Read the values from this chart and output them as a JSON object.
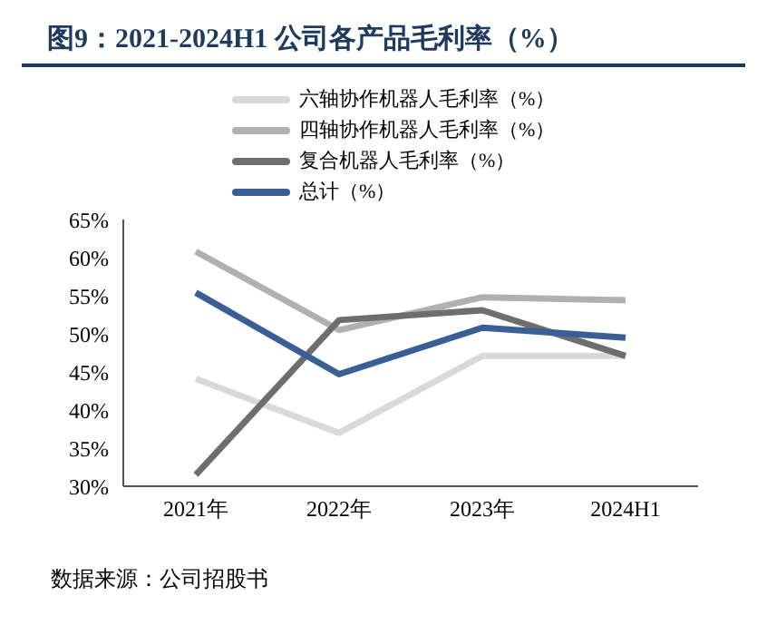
{
  "chart_data": {
    "type": "line",
    "title": "图9：2021-2024H1 公司各产品毛利率（%）",
    "categories": [
      "2021年",
      "2022年",
      "2023年",
      "2024H1"
    ],
    "series": [
      {
        "name": "六轴协作机器人毛利率（%）",
        "color": "#d9d9d9",
        "values": [
          44.1,
          37.0,
          47.1,
          47.1
        ]
      },
      {
        "name": "四轴协作机器人毛利率（%）",
        "color": "#b0b0b0",
        "values": [
          60.8,
          50.5,
          54.8,
          54.4
        ]
      },
      {
        "name": "复合机器人毛利率（%）",
        "color": "#6e6e6e",
        "values": [
          31.5,
          51.8,
          53.1,
          47.1
        ]
      },
      {
        "name": "总计（%）",
        "color": "#3a5f95",
        "values": [
          55.4,
          44.7,
          50.8,
          49.5
        ]
      }
    ],
    "ylim": [
      30,
      65
    ],
    "yticks": [
      {
        "value": 30,
        "label": "30%"
      },
      {
        "value": 35,
        "label": "35%"
      },
      {
        "value": 40,
        "label": "40%"
      },
      {
        "value": 45,
        "label": "45%"
      },
      {
        "value": 50,
        "label": "50%"
      },
      {
        "value": 55,
        "label": "55%"
      },
      {
        "value": 60,
        "label": "60%"
      },
      {
        "value": 65,
        "label": "65%"
      }
    ],
    "grid": false,
    "legend": "top",
    "marker": "none",
    "line_style": "solid",
    "annotations": [
      "数据来源：公司招股书"
    ]
  }
}
